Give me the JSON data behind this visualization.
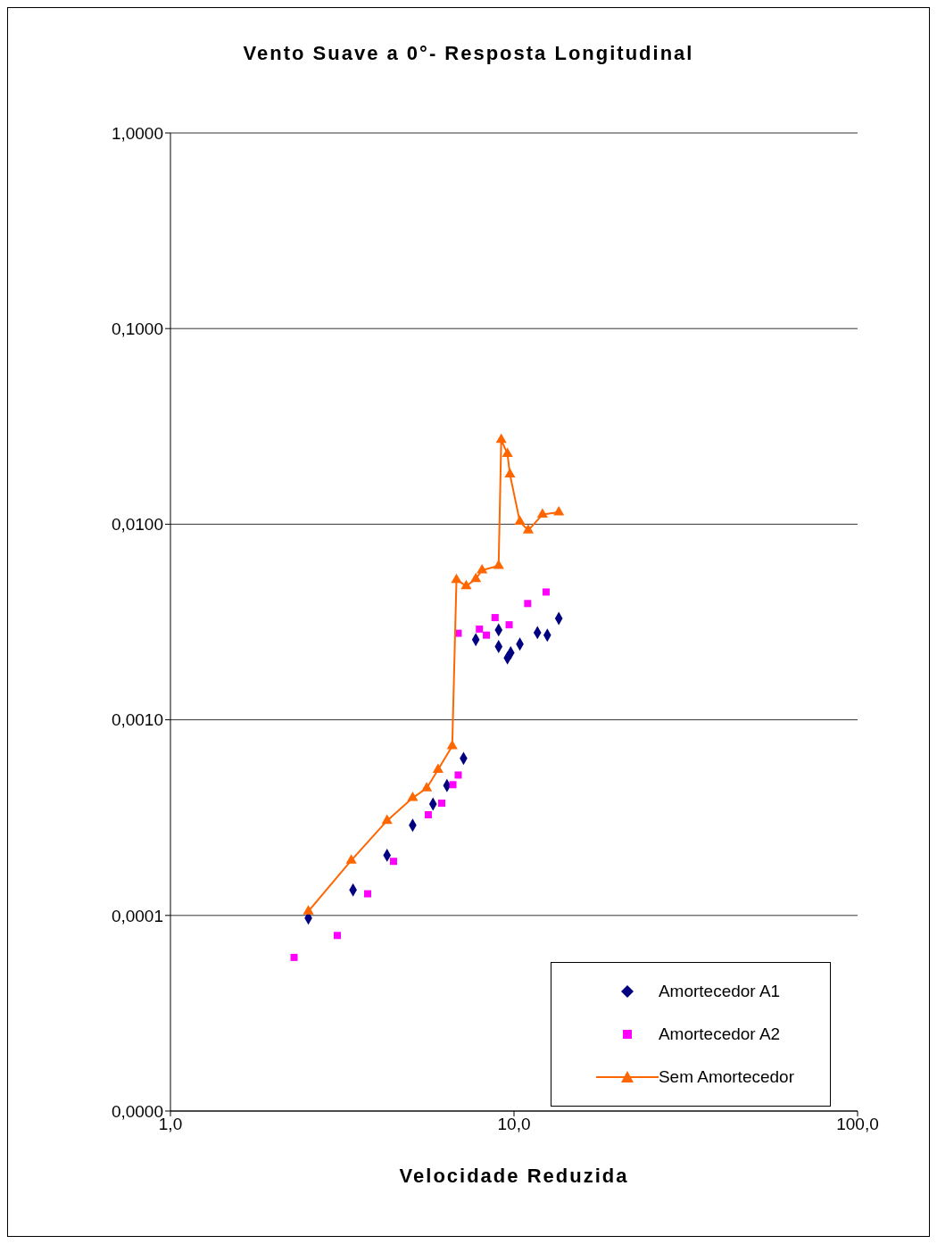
{
  "chart_data": {
    "type": "scatter",
    "title": "Vento Suave a 0°- Resposta Longitudinal",
    "xlabel": "Velocidade Reduzida",
    "log": "xy",
    "grid": "y",
    "legend": "bottom right",
    "xlim": [
      1,
      100
    ],
    "xticks": [
      {
        "value": 1,
        "label": "1,0"
      },
      {
        "value": 10,
        "label": "10,0"
      },
      {
        "value": 100,
        "label": "100,0"
      }
    ],
    "ylim": [
      1e-05,
      1
    ],
    "yticks": [
      {
        "value": 1e-05,
        "label": "0,0000"
      },
      {
        "value": 0.0001,
        "label": "0,0001"
      },
      {
        "value": 0.001,
        "label": "0,0010"
      },
      {
        "value": 0.01,
        "label": "0,0100"
      },
      {
        "value": 0.1,
        "label": "0,1000"
      },
      {
        "value": 1,
        "label": "1,0000"
      }
    ],
    "series": [
      {
        "name": "Amortecedor A1",
        "marker": "diamond",
        "color": "#000080",
        "x": [
          2.52,
          3.4,
          4.27,
          5.07,
          5.81,
          6.38,
          7.13,
          7.74,
          9.02,
          9.02,
          9.57,
          9.78,
          10.4,
          11.7,
          12.5,
          13.5
        ],
        "values": [
          9.7e-05,
          0.000135,
          0.000203,
          0.000289,
          0.000371,
          0.000461,
          0.000635,
          0.00257,
          0.00288,
          0.00237,
          0.00207,
          0.0022,
          0.00244,
          0.00279,
          0.00271,
          0.0033
        ]
      },
      {
        "name": "Amortecedor A2",
        "marker": "square",
        "color": "#ff00ff",
        "x": [
          2.29,
          3.06,
          3.75,
          4.46,
          5.63,
          6.16,
          6.64,
          6.88,
          6.88,
          7.93,
          8.31,
          8.81,
          9.68,
          10.96,
          12.4
        ],
        "values": [
          6.1e-05,
          7.9e-05,
          0.000129,
          0.000189,
          0.000327,
          0.000375,
          0.000466,
          0.000522,
          0.00277,
          0.00291,
          0.00271,
          0.00333,
          0.00306,
          0.00393,
          0.0045
        ]
      },
      {
        "name": "Sem Amortecedor",
        "type": "line",
        "marker": "triangle",
        "color": "#ff6600",
        "x": [
          2.52,
          3.36,
          4.27,
          5.07,
          5.57,
          6.01,
          6.61,
          6.8,
          7.26,
          7.74,
          8.07,
          9.02,
          9.18,
          9.57,
          9.73,
          10.4,
          11.0,
          12.1,
          13.5
        ],
        "values": [
          0.000105,
          0.000191,
          0.000305,
          0.000399,
          0.000447,
          0.000556,
          0.000734,
          0.0052,
          0.00483,
          0.00525,
          0.00582,
          0.00613,
          0.027,
          0.0229,
          0.018,
          0.0103,
          0.0093,
          0.0112,
          0.0115
        ]
      }
    ]
  }
}
